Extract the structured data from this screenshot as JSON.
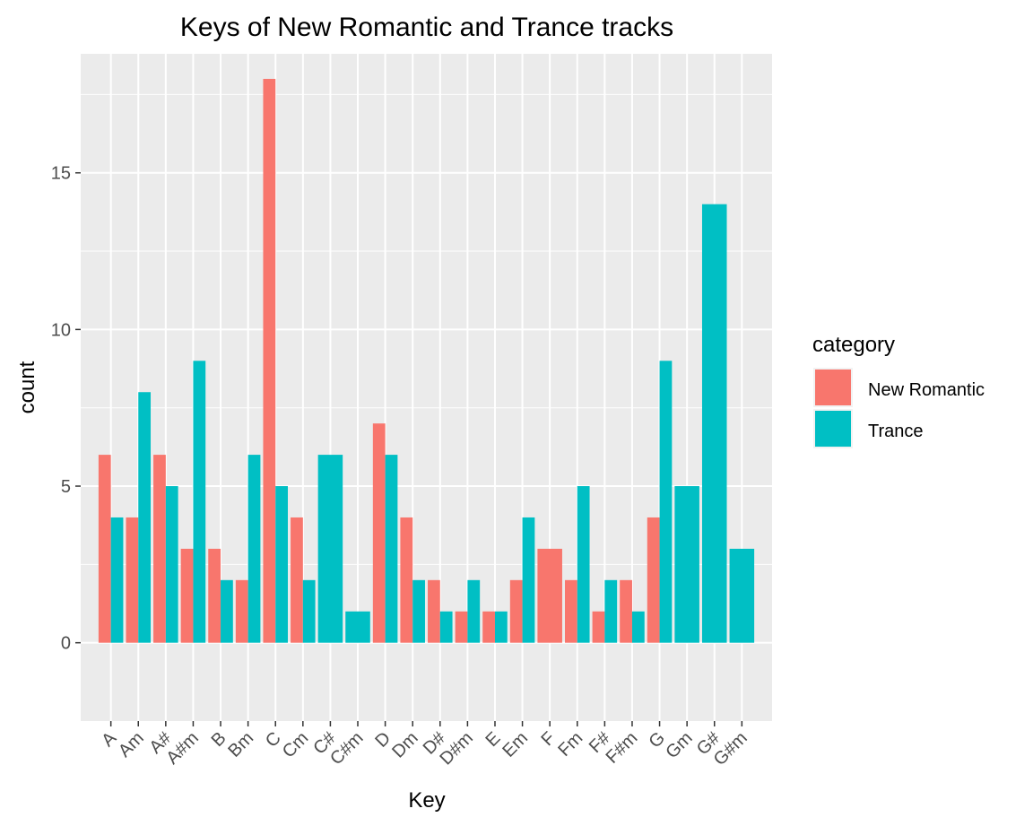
{
  "chart_data": {
    "type": "bar",
    "title": "Keys of New Romantic and Trance tracks",
    "xlabel": "Key",
    "ylabel": "count",
    "ylim": [
      -2.5,
      18.8
    ],
    "yticks": [
      0,
      5,
      10,
      15
    ],
    "grid": true,
    "legend": {
      "title": "category",
      "position": "right"
    },
    "categories": [
      "A",
      "Am",
      "A#",
      "A#m",
      "B",
      "Bm",
      "C",
      "Cm",
      "C#",
      "C#m",
      "D",
      "Dm",
      "D#",
      "D#m",
      "E",
      "Em",
      "F",
      "Fm",
      "F#",
      "F#m",
      "G",
      "Gm",
      "G#",
      "G#m"
    ],
    "series": [
      {
        "name": "New Romantic",
        "color": "#F8766D",
        "values": [
          6,
          4,
          6,
          3,
          3,
          2,
          18,
          4,
          null,
          null,
          7,
          4,
          2,
          1,
          1,
          2,
          3,
          2,
          1,
          2,
          4,
          null,
          null,
          null
        ]
      },
      {
        "name": "Trance",
        "color": "#00BFC4",
        "values": [
          4,
          8,
          5,
          9,
          2,
          6,
          5,
          2,
          6,
          1,
          6,
          2,
          1,
          2,
          1,
          4,
          null,
          5,
          2,
          1,
          9,
          5,
          14,
          3
        ]
      }
    ]
  }
}
